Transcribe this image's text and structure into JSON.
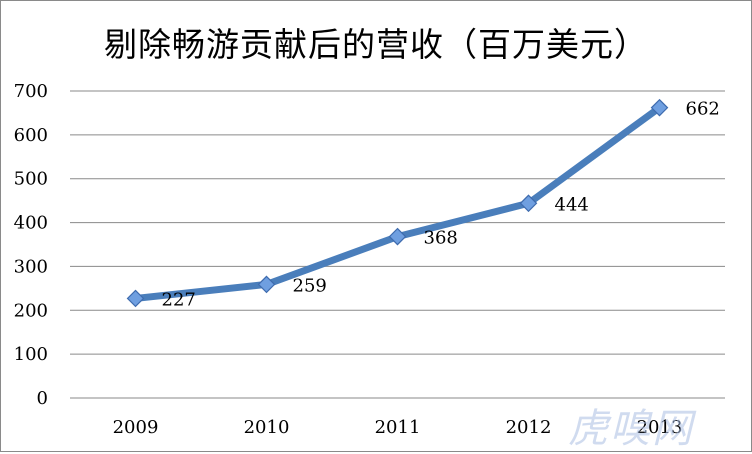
{
  "chart_data": {
    "type": "line",
    "title": "剔除畅游贡献后的营收（百万美元）",
    "xlabel": "",
    "ylabel": "",
    "categories": [
      "2009",
      "2010",
      "2011",
      "2012",
      "2013"
    ],
    "series": [
      {
        "values": [
          227,
          259,
          368,
          444,
          662
        ]
      }
    ],
    "data_labels": [
      "227",
      "259",
      "368",
      "444",
      "662"
    ],
    "y_ticks": [
      "0",
      "100",
      "200",
      "300",
      "400",
      "500",
      "600",
      "700"
    ],
    "ylim": [
      0,
      700
    ],
    "grid": true,
    "legend": "none"
  },
  "colors": {
    "line": "#4A7EBB",
    "marker_fill": "#6F9FE0",
    "marker_stroke": "#3E6BAE",
    "grid": "#8a8a8a"
  },
  "watermark": "虎嗅网"
}
